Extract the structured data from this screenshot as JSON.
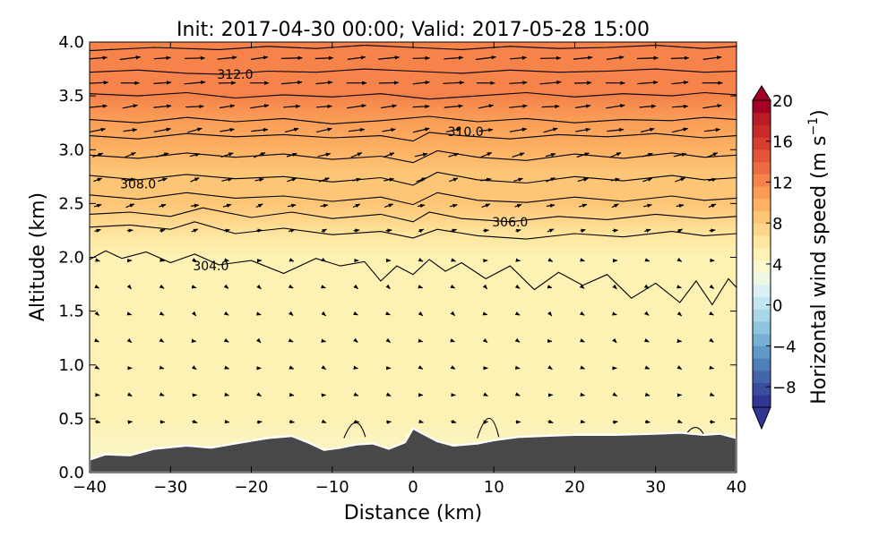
{
  "chart_data": {
    "type": "heatmap",
    "title": "Init: 2017-04-30 00:00; Valid: 2017-05-28 15:00",
    "xlabel": "Distance (km)",
    "ylabel": "Altitude (km)",
    "xlim": [
      -40,
      40
    ],
    "ylim": [
      0.0,
      4.0
    ],
    "x_ticks": [
      "−40",
      "−30",
      "−20",
      "−10",
      "0",
      "10",
      "20",
      "30",
      "40"
    ],
    "y_ticks": [
      "0.0",
      "0.5",
      "1.0",
      "1.5",
      "2.0",
      "2.5",
      "3.0",
      "3.5",
      "4.0"
    ],
    "colorbar": {
      "label_main": "Horizontal wind speed (m s",
      "label_sup": "−1",
      "label_end": ")",
      "range": [
        -10,
        20
      ],
      "extend": "both",
      "ticks": [
        "20",
        "16",
        "12",
        "8",
        "4",
        "0",
        "−4",
        "−8"
      ],
      "levels": [
        -10,
        -9,
        -8,
        -7,
        -6,
        -5,
        -4,
        -3,
        -2,
        -1,
        0,
        1,
        2,
        3,
        4,
        5,
        6,
        7,
        8,
        9,
        10,
        11,
        12,
        13,
        14,
        15,
        16,
        17,
        18,
        19,
        20
      ],
      "colors": [
        "#313695",
        "#3a4d9f",
        "#4365aa",
        "#4f7fb8",
        "#6199c6",
        "#77b0d3",
        "#8fc4de",
        "#a9d6e8",
        "#c3e5f0",
        "#dbf0f2",
        "#eef7e4",
        "#f9f8cf",
        "#fdf1b4",
        "#fee6a0",
        "#fdd68b",
        "#fdc576",
        "#fcb163",
        "#f99b55",
        "#f5834a",
        "#ec6b40",
        "#e25338",
        "#d53d2f",
        "#c82a27",
        "#b81c26",
        "#a50026"
      ]
    },
    "shaded_field": {
      "name": "Horizontal wind speed",
      "altitude_km": [
        0.0,
        0.5,
        1.0,
        1.5,
        2.0,
        2.2,
        2.5,
        2.8,
        3.0,
        3.3,
        3.5,
        3.7,
        4.0
      ],
      "speed_m_s": [
        4.0,
        4.5,
        5.0,
        5.0,
        5.5,
        6.5,
        8.0,
        9.0,
        10.0,
        11.0,
        12.0,
        12.5,
        12.0
      ]
    },
    "terrain": {
      "name": "surface",
      "x": [
        -40,
        -38,
        -35,
        -32,
        -28,
        -25,
        -22,
        -18,
        -15,
        -13,
        -11,
        -9,
        -7,
        -5,
        -3,
        -1,
        0,
        1,
        3,
        5,
        8,
        10,
        13,
        16,
        20,
        25,
        30,
        33,
        36,
        38,
        40
      ],
      "y": [
        0.12,
        0.17,
        0.16,
        0.22,
        0.25,
        0.23,
        0.27,
        0.32,
        0.34,
        0.28,
        0.21,
        0.23,
        0.26,
        0.27,
        0.22,
        0.28,
        0.41,
        0.37,
        0.29,
        0.25,
        0.27,
        0.3,
        0.33,
        0.34,
        0.35,
        0.35,
        0.36,
        0.37,
        0.35,
        0.36,
        0.32
      ]
    },
    "contours": {
      "name": "potential temperature",
      "annotations": [
        {
          "label": "312.0",
          "x": -22,
          "y": 3.7
        },
        {
          "label": "310.0",
          "x": 6.5,
          "y": 3.17
        },
        {
          "label": "308.0",
          "x": -34,
          "y": 2.68
        },
        {
          "label": "306.0",
          "x": 12,
          "y": 2.33
        },
        {
          "label": "304.0",
          "x": -25,
          "y": 1.92
        }
      ],
      "levels_km": [
        {
          "x": [
            -40,
            -32,
            -24,
            -18,
            -12,
            -6,
            0,
            6,
            12,
            18,
            24,
            30,
            36,
            40
          ],
          "y": [
            3.92,
            3.95,
            3.93,
            3.96,
            3.94,
            3.97,
            3.95,
            3.93,
            3.96,
            3.94,
            3.95,
            3.97,
            3.94,
            3.96
          ]
        },
        {
          "x": [
            -40,
            -34,
            -28,
            -23,
            -18,
            -12,
            -6,
            0,
            6,
            12,
            18,
            24,
            30,
            36,
            40
          ],
          "y": [
            3.72,
            3.74,
            3.71,
            3.7,
            3.73,
            3.72,
            3.75,
            3.73,
            3.71,
            3.74,
            3.72,
            3.73,
            3.75,
            3.72,
            3.73
          ]
        },
        {
          "x": [
            -40,
            -34,
            -28,
            -22,
            -16,
            -10,
            -4,
            2,
            8,
            14,
            20,
            26,
            32,
            36,
            40
          ],
          "y": [
            3.52,
            3.5,
            3.53,
            3.48,
            3.51,
            3.49,
            3.52,
            3.47,
            3.5,
            3.53,
            3.49,
            3.52,
            3.5,
            3.53,
            3.51
          ]
        },
        {
          "x": [
            -40,
            -34,
            -28,
            -22,
            -16,
            -10,
            -4,
            2,
            8,
            14,
            20,
            26,
            32,
            36,
            40
          ],
          "y": [
            3.28,
            3.25,
            3.3,
            3.26,
            3.29,
            3.24,
            3.27,
            3.31,
            3.26,
            3.29,
            3.25,
            3.28,
            3.27,
            3.3,
            3.28
          ]
        },
        {
          "x": [
            -40,
            -34,
            -28,
            -22,
            -16,
            -10,
            -4,
            0,
            2,
            6,
            12,
            18,
            24,
            30,
            36,
            40
          ],
          "y": [
            3.13,
            3.1,
            3.15,
            3.12,
            3.14,
            3.11,
            3.13,
            3.08,
            3.16,
            3.13,
            3.1,
            3.14,
            3.12,
            3.15,
            3.11,
            3.13
          ]
        },
        {
          "x": [
            -40,
            -34,
            -28,
            -22,
            -16,
            -10,
            -4,
            0,
            3,
            8,
            14,
            20,
            26,
            32,
            36,
            40
          ],
          "y": [
            2.95,
            2.92,
            2.97,
            2.93,
            2.96,
            2.91,
            2.94,
            2.88,
            2.99,
            2.93,
            2.9,
            2.96,
            2.92,
            2.97,
            2.93,
            2.95
          ]
        },
        {
          "x": [
            -40,
            -34,
            -28,
            -22,
            -16,
            -10,
            -4,
            0,
            3,
            8,
            14,
            20,
            26,
            32,
            36,
            40
          ],
          "y": [
            2.76,
            2.72,
            2.77,
            2.73,
            2.75,
            2.7,
            2.74,
            2.67,
            2.79,
            2.72,
            2.69,
            2.75,
            2.71,
            2.76,
            2.72,
            2.74
          ]
        },
        {
          "x": [
            -40,
            -34,
            -28,
            -22,
            -16,
            -10,
            -4,
            0,
            3,
            8,
            14,
            20,
            26,
            32,
            36,
            40
          ],
          "y": [
            2.58,
            2.54,
            2.6,
            2.55,
            2.57,
            2.52,
            2.56,
            2.49,
            2.6,
            2.53,
            2.51,
            2.56,
            2.52,
            2.57,
            2.53,
            2.55
          ]
        },
        {
          "x": [
            -40,
            -35,
            -30,
            -26,
            -20,
            -15,
            -10,
            -4,
            0,
            2,
            6,
            12,
            18,
            24,
            30,
            36,
            40
          ],
          "y": [
            2.4,
            2.42,
            2.38,
            2.46,
            2.37,
            2.42,
            2.36,
            2.4,
            2.33,
            2.42,
            2.36,
            2.33,
            2.38,
            2.35,
            2.4,
            2.36,
            2.38
          ]
        },
        {
          "x": [
            -40,
            -35,
            -30,
            -27,
            -22,
            -16,
            -10,
            -4,
            0,
            3,
            8,
            14,
            20,
            26,
            32,
            36,
            40
          ],
          "y": [
            2.28,
            2.3,
            2.26,
            2.33,
            2.22,
            2.27,
            2.21,
            2.24,
            2.18,
            2.26,
            2.2,
            2.17,
            2.22,
            2.19,
            2.24,
            2.2,
            2.22
          ]
        },
        {
          "x": [
            -40,
            -38,
            -36,
            -33,
            -30,
            -27,
            -24,
            -20,
            -16,
            -12,
            -9,
            -6,
            -4,
            -2,
            0,
            2,
            4,
            6,
            9,
            12,
            15,
            18,
            21,
            24,
            27,
            30,
            33,
            35,
            37,
            39,
            40
          ],
          "y": [
            1.98,
            2.06,
            1.99,
            2.05,
            1.95,
            2.03,
            1.93,
            1.97,
            1.85,
            1.99,
            1.92,
            1.96,
            1.78,
            1.92,
            1.84,
            1.98,
            1.87,
            1.95,
            1.8,
            1.92,
            1.7,
            1.86,
            1.74,
            1.84,
            1.62,
            1.76,
            1.58,
            1.78,
            1.56,
            1.8,
            1.72
          ]
        }
      ]
    },
    "wind_vectors": {
      "name": "wind vectors",
      "x_columns": [
        -39,
        -35,
        -31,
        -27,
        -23,
        -19,
        -15,
        -11,
        -7,
        -3,
        1,
        5,
        9,
        13,
        17,
        21,
        25,
        29,
        33,
        37
      ],
      "rows": [
        {
          "y": 3.85,
          "u": 10,
          "w": 0.8
        },
        {
          "y": 3.62,
          "u": 10,
          "w": 0.5
        },
        {
          "y": 3.4,
          "u": 9,
          "w": 1.0
        },
        {
          "y": 3.18,
          "u": 8,
          "w": 1.5
        },
        {
          "y": 2.95,
          "u": 6,
          "w": 2.0
        },
        {
          "y": 2.72,
          "u": 5,
          "w": 1.5
        },
        {
          "y": 2.48,
          "u": 4,
          "w": 1.2
        },
        {
          "y": 2.25,
          "u": 3,
          "w": 0.8
        },
        {
          "y": 1.97,
          "u": 2,
          "w": -0.5
        },
        {
          "y": 1.72,
          "u": 1.5,
          "w": -1.0
        },
        {
          "y": 1.47,
          "u": 1.5,
          "w": -1.0
        },
        {
          "y": 1.22,
          "u": 1.5,
          "w": -0.8
        },
        {
          "y": 0.97,
          "u": 1.8,
          "w": -0.6
        },
        {
          "y": 0.72,
          "u": 2,
          "w": -0.5
        },
        {
          "y": 0.47,
          "u": 2.5,
          "w": -0.3
        }
      ]
    },
    "grid": false,
    "legend": "none"
  }
}
